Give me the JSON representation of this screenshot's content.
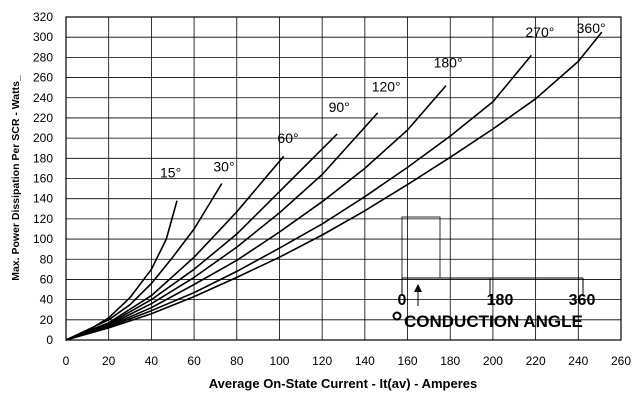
{
  "chart_data": {
    "type": "line",
    "xlabel": "Average On-State Current - It(av) - Amperes",
    "ylabel": "Max. Power Dissipation Per SCR - Watts_",
    "xlim": [
      0,
      260
    ],
    "ylim": [
      0,
      320
    ],
    "x_ticks": [
      0,
      20,
      40,
      60,
      80,
      100,
      120,
      140,
      160,
      180,
      200,
      220,
      240,
      260
    ],
    "y_ticks": [
      0,
      20,
      40,
      60,
      80,
      100,
      120,
      140,
      160,
      180,
      200,
      220,
      240,
      260,
      280,
      300,
      320
    ],
    "grid": true,
    "series": [
      {
        "name": "15°",
        "points": [
          [
            0,
            0
          ],
          [
            10,
            9
          ],
          [
            20,
            22
          ],
          [
            30,
            42
          ],
          [
            40,
            70
          ],
          [
            47,
            100
          ],
          [
            52,
            138
          ]
        ]
      },
      {
        "name": "30°",
        "points": [
          [
            0,
            0
          ],
          [
            20,
            20
          ],
          [
            30,
            35
          ],
          [
            40,
            56
          ],
          [
            50,
            82
          ],
          [
            60,
            110
          ],
          [
            73,
            155
          ]
        ]
      },
      {
        "name": "60°",
        "points": [
          [
            0,
            0
          ],
          [
            20,
            17
          ],
          [
            40,
            44
          ],
          [
            60,
            82
          ],
          [
            80,
            127
          ],
          [
            102,
            182
          ]
        ]
      },
      {
        "name": "90°",
        "points": [
          [
            0,
            0
          ],
          [
            20,
            16
          ],
          [
            40,
            40
          ],
          [
            60,
            70
          ],
          [
            80,
            105
          ],
          [
            100,
            147
          ],
          [
            127,
            204
          ]
        ]
      },
      {
        "name": "120°",
        "points": [
          [
            0,
            0
          ],
          [
            20,
            15
          ],
          [
            40,
            36
          ],
          [
            60,
            62
          ],
          [
            80,
            92
          ],
          [
            100,
            126
          ],
          [
            120,
            164
          ],
          [
            146,
            225
          ]
        ]
      },
      {
        "name": "180°",
        "points": [
          [
            0,
            0
          ],
          [
            20,
            14
          ],
          [
            40,
            32
          ],
          [
            60,
            55
          ],
          [
            80,
            79
          ],
          [
            100,
            107
          ],
          [
            120,
            137
          ],
          [
            140,
            170
          ],
          [
            160,
            208
          ],
          [
            178,
            252
          ]
        ]
      },
      {
        "name": "270°",
        "points": [
          [
            0,
            0
          ],
          [
            20,
            13
          ],
          [
            40,
            29
          ],
          [
            60,
            47
          ],
          [
            80,
            68
          ],
          [
            100,
            91
          ],
          [
            120,
            115
          ],
          [
            140,
            142
          ],
          [
            160,
            171
          ],
          [
            180,
            202
          ],
          [
            200,
            236
          ],
          [
            218,
            282
          ]
        ]
      },
      {
        "name": "360°",
        "points": [
          [
            0,
            0
          ],
          [
            20,
            12
          ],
          [
            40,
            26
          ],
          [
            60,
            43
          ],
          [
            80,
            62
          ],
          [
            100,
            82
          ],
          [
            120,
            104
          ],
          [
            140,
            128
          ],
          [
            160,
            154
          ],
          [
            180,
            181
          ],
          [
            200,
            209
          ],
          [
            220,
            239
          ],
          [
            240,
            276
          ],
          [
            251,
            305
          ]
        ]
      }
    ],
    "labels": [
      {
        "text": "15°",
        "x": 49,
        "y": 161
      },
      {
        "text": "30°",
        "x": 74,
        "y": 167
      },
      {
        "text": "60°",
        "x": 104,
        "y": 195
      },
      {
        "text": "90°",
        "x": 128,
        "y": 226
      },
      {
        "text": "120°",
        "x": 150,
        "y": 246
      },
      {
        "text": "180°",
        "x": 179,
        "y": 270
      },
      {
        "text": "270°",
        "x": 222,
        "y": 300
      },
      {
        "text": "360°",
        "x": 246,
        "y": 304
      }
    ],
    "inset": {
      "ticks": [
        "0",
        "180",
        "360"
      ],
      "caption": "CONDUCTION ANGLE"
    }
  }
}
